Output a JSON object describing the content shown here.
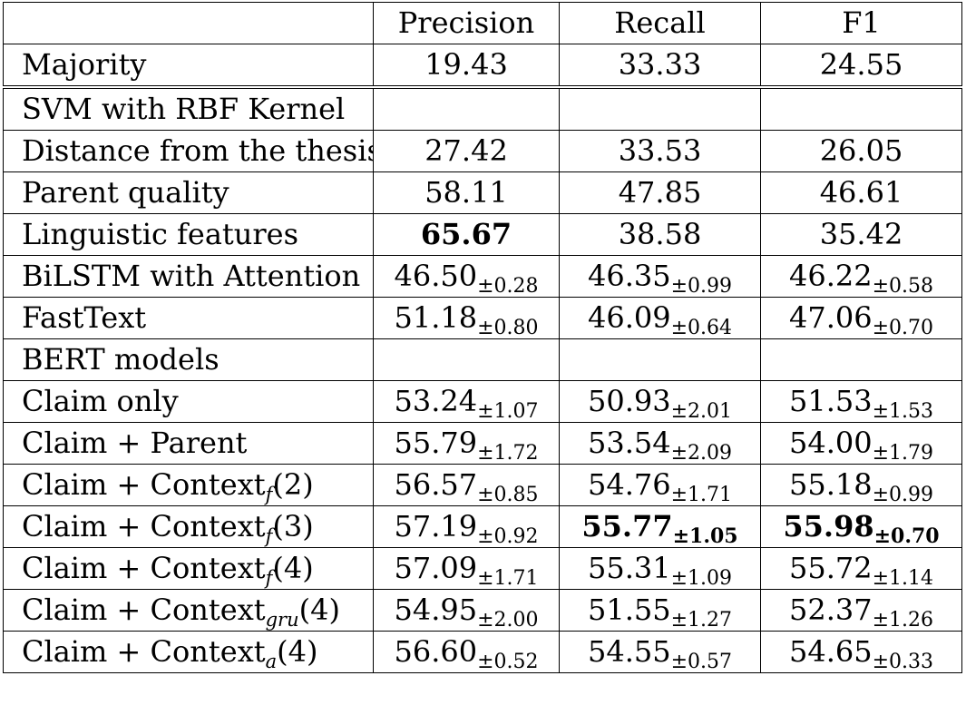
{
  "header": {
    "label": "",
    "columns": [
      "Precision",
      "Recall",
      "F1"
    ]
  },
  "majority": {
    "label": "Majority",
    "values": [
      "19.43",
      "33.33",
      "24.55"
    ]
  },
  "sections": [
    {
      "title": "SVM with RBF Kernel",
      "rows": [
        {
          "label": "Distance from the thesis",
          "cells": [
            {
              "v": "27.42"
            },
            {
              "v": "33.53"
            },
            {
              "v": "26.05"
            }
          ]
        },
        {
          "label": "Parent quality",
          "cells": [
            {
              "v": "58.11"
            },
            {
              "v": "47.85"
            },
            {
              "v": "46.61"
            }
          ]
        },
        {
          "label": "Linguistic features",
          "cells": [
            {
              "v": "65.67",
              "bold": true
            },
            {
              "v": "38.58"
            },
            {
              "v": "35.42"
            }
          ]
        }
      ]
    },
    {
      "title": "",
      "rows": [
        {
          "label": "BiLSTM with Attention",
          "cells": [
            {
              "v": "46.50",
              "sd": "±0.28"
            },
            {
              "v": "46.35",
              "sd": "±0.99"
            },
            {
              "v": "46.22",
              "sd": "±0.58"
            }
          ]
        },
        {
          "label": "FastText",
          "cells": [
            {
              "v": "51.18",
              "sd": "±0.80"
            },
            {
              "v": "46.09",
              "sd": "±0.64"
            },
            {
              "v": "47.06",
              "sd": "±0.70"
            }
          ]
        }
      ]
    },
    {
      "title": "BERT models",
      "rows": [
        {
          "label": "Claim only",
          "cells": [
            {
              "v": "53.24",
              "sd": "±1.07"
            },
            {
              "v": "50.93",
              "sd": "±2.01"
            },
            {
              "v": "51.53",
              "sd": "±1.53"
            }
          ]
        },
        {
          "label": "Claim + Parent",
          "cells": [
            {
              "v": "55.79",
              "sd": "±1.72"
            },
            {
              "v": "53.54",
              "sd": "±2.09"
            },
            {
              "v": "54.00",
              "sd": "±1.79"
            }
          ]
        },
        {
          "label": "Claim + Context",
          "sub": "f",
          "arg": "(2)",
          "cells": [
            {
              "v": "56.57",
              "sd": "±0.85"
            },
            {
              "v": "54.76",
              "sd": "±1.71"
            },
            {
              "v": "55.18",
              "sd": "±0.99"
            }
          ]
        },
        {
          "label": "Claim + Context",
          "sub": "f",
          "arg": "(3)",
          "cells": [
            {
              "v": "57.19",
              "sd": "±0.92"
            },
            {
              "v": "55.77",
              "sd": "±1.05",
              "bold": true
            },
            {
              "v": "55.98",
              "sd": "±0.70",
              "bold": true
            }
          ]
        },
        {
          "label": "Claim + Context",
          "sub": "f",
          "arg": "(4)",
          "cells": [
            {
              "v": "57.09",
              "sd": "±1.71"
            },
            {
              "v": "55.31",
              "sd": "±1.09"
            },
            {
              "v": "55.72",
              "sd": "±1.14"
            }
          ]
        },
        {
          "label": "Claim + Context",
          "sub": "gru",
          "arg": "(4)",
          "cells": [
            {
              "v": "54.95",
              "sd": "±2.00"
            },
            {
              "v": "51.55",
              "sd": "±1.27"
            },
            {
              "v": "52.37",
              "sd": "±1.26"
            }
          ]
        },
        {
          "label": "Claim + Context",
          "sub": "a",
          "arg": "(4)",
          "cells": [
            {
              "v": "56.60",
              "sd": "±0.52"
            },
            {
              "v": "54.55",
              "sd": "±0.57"
            },
            {
              "v": "54.65",
              "sd": "±0.33"
            }
          ]
        }
      ]
    }
  ]
}
